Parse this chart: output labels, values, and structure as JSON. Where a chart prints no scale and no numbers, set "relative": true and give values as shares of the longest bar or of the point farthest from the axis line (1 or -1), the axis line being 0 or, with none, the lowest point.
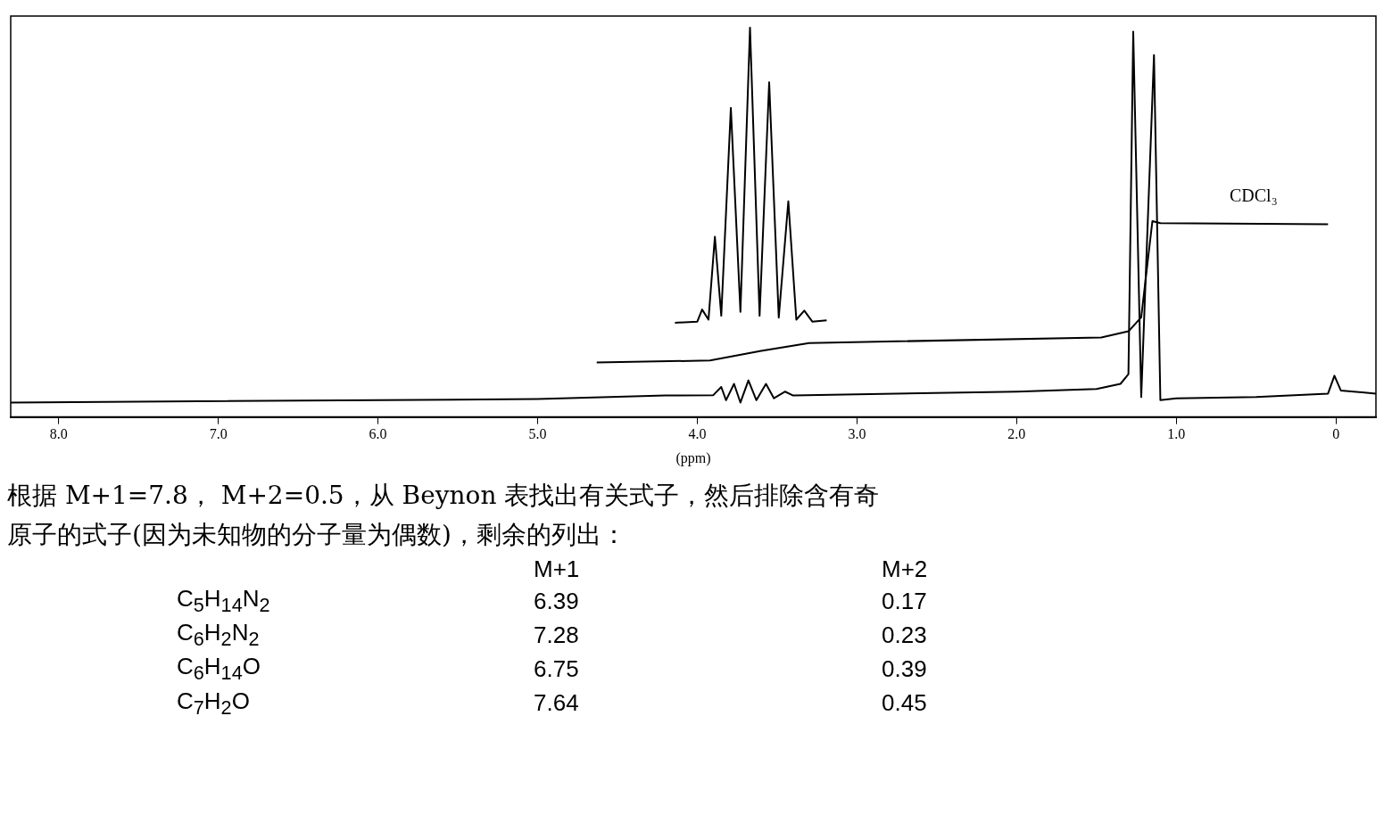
{
  "chart_data": {
    "type": "line",
    "xlabel": "(ppm)",
    "relative": true,
    "tick_labels": "x",
    "grid": false,
    "legend": false,
    "xlim": [
      8.3,
      -0.25
    ],
    "xticks": [
      {
        "value": 8,
        "label": "8.0"
      },
      {
        "value": 7,
        "label": "7.0"
      },
      {
        "value": 6,
        "label": "6.0"
      },
      {
        "value": 5,
        "label": "5.0"
      },
      {
        "value": 4,
        "label": "4.0"
      },
      {
        "value": 3,
        "label": "3.0"
      },
      {
        "value": 2,
        "label": "2.0"
      },
      {
        "value": 1,
        "label": "1.0"
      },
      0
    ],
    "series": [
      {
        "color": "#000000",
        "x": [
          8.3,
          5.0,
          4.2,
          3.9,
          3.85,
          3.82,
          3.77,
          3.73,
          3.68,
          3.63,
          3.57,
          3.52,
          3.45,
          3.4,
          3.0,
          2.0,
          1.5,
          1.35,
          1.3,
          1.27,
          1.22,
          1.14,
          1.1,
          1.0,
          0.5,
          0.05,
          0.01,
          -0.03,
          -0.25
        ],
        "values": [
          0.037,
          0.046,
          0.055,
          0.056,
          0.077,
          0.043,
          0.085,
          0.037,
          0.094,
          0.043,
          0.085,
          0.048,
          0.065,
          0.055,
          0.058,
          0.065,
          0.072,
          0.085,
          0.11,
          0.99,
          0.051,
          0.93,
          0.043,
          0.048,
          0.051,
          0.06,
          0.106,
          0.068,
          0.06
        ]
      },
      {
        "color": "#000000",
        "x": [
          4.63,
          3.92,
          3.6,
          3.3,
          1.47,
          1.3,
          1.22,
          1.15,
          1.1,
          0.05
        ],
        "values": [
          0.14,
          0.145,
          0.17,
          0.19,
          0.204,
          0.22,
          0.256,
          0.503,
          0.498,
          0.495
        ]
      },
      {
        "color": "#000000",
        "x": [
          4.14,
          4.0,
          3.97,
          3.93,
          3.89,
          3.85,
          3.79,
          3.73,
          3.67,
          3.61,
          3.55,
          3.49,
          3.43,
          3.38,
          3.33,
          3.28,
          3.19
        ],
        "values": [
          0.242,
          0.245,
          0.276,
          0.25,
          0.463,
          0.26,
          0.794,
          0.27,
          1.0,
          0.26,
          0.86,
          0.255,
          0.554,
          0.25,
          0.273,
          0.245,
          0.248
        ]
      }
    ],
    "annotations": [
      "CDCl₃",
      "根据 M+1=7.8， M+2=0.5，从 Beynon 表找出有关式子，然后排除含有奇",
      "原子的式子(因为未知物的分子量为偶数)，剩余的列出：",
      "M+1",
      "M+2",
      "C$_{5}$H$_{14}$N$_{2}$",
      "6.39",
      "0.17",
      "C$_{6}$H$_{2}$N$_{2}$",
      "7.28",
      "0.23",
      "C$_{6}$H$_{14}$O",
      "6.75",
      "0.39",
      "C$_{7}$H$_{2}$O",
      "7.64",
      "0.45"
    ]
  }
}
